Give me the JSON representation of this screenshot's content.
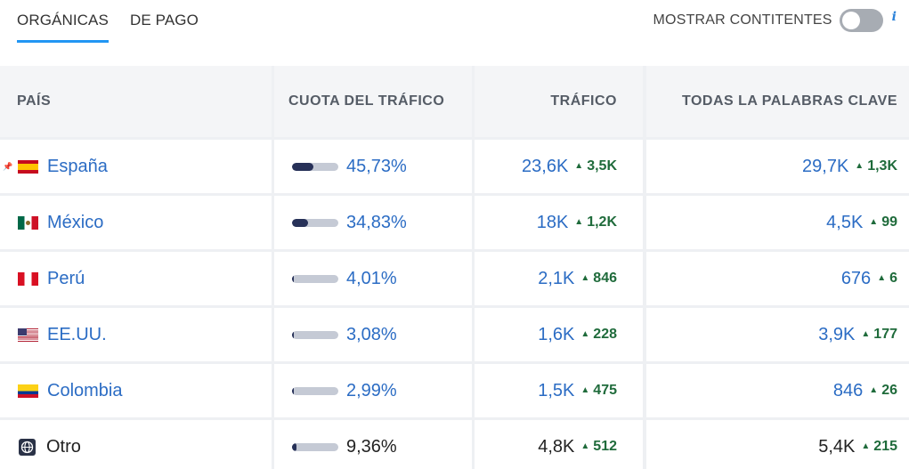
{
  "tabs": {
    "organic": "ORGÁNICAS",
    "paid": "DE PAGO"
  },
  "toggle": {
    "label": "MOSTRAR CONTITENTES",
    "state": "off",
    "info": "i"
  },
  "columns": {
    "country": "PAÍS",
    "share": "CUOTA DEL TRÁFICO",
    "traffic": "TRÁFICO",
    "keywords": "TODAS LA PALABRAS CLAVE"
  },
  "rows": [
    {
      "country": "España",
      "flag_icon": "flag-spain-icon",
      "pinned": true,
      "share_pct": "45,73%",
      "share_fraction": 0.4573,
      "traffic": "23,6K",
      "traffic_delta": "3,5K",
      "keywords": "29,7K",
      "keywords_delta": "1,3K"
    },
    {
      "country": "México",
      "flag_icon": "flag-mexico-icon",
      "pinned": false,
      "share_pct": "34,83%",
      "share_fraction": 0.3483,
      "traffic": "18K",
      "traffic_delta": "1,2K",
      "keywords": "4,5K",
      "keywords_delta": "99"
    },
    {
      "country": "Perú",
      "flag_icon": "flag-peru-icon",
      "pinned": false,
      "share_pct": "4,01%",
      "share_fraction": 0.0401,
      "traffic": "2,1K",
      "traffic_delta": "846",
      "keywords": "676",
      "keywords_delta": "6"
    },
    {
      "country": "EE.UU.",
      "flag_icon": "flag-usa-icon",
      "pinned": false,
      "share_pct": "3,08%",
      "share_fraction": 0.0308,
      "traffic": "1,6K",
      "traffic_delta": "228",
      "keywords": "3,9K",
      "keywords_delta": "177"
    },
    {
      "country": "Colombia",
      "flag_icon": "flag-colombia-icon",
      "pinned": false,
      "share_pct": "2,99%",
      "share_fraction": 0.0299,
      "traffic": "1,5K",
      "traffic_delta": "475",
      "keywords": "846",
      "keywords_delta": "26"
    },
    {
      "country": "Otro",
      "flag_icon": "globe-icon",
      "pinned": false,
      "share_pct": "9,36%",
      "share_fraction": 0.0936,
      "traffic": "4,8K",
      "traffic_delta": "512",
      "keywords": "5,4K",
      "keywords_delta": "215"
    }
  ],
  "icons": {
    "pin": "pin-icon",
    "up": "triangle-up-icon"
  },
  "colors": {
    "link": "#2b6cc4",
    "delta": "#1f6b3b",
    "bar_fill": "#273158",
    "bar_track": "#c5cad5",
    "tab_underline": "#2196f3"
  }
}
